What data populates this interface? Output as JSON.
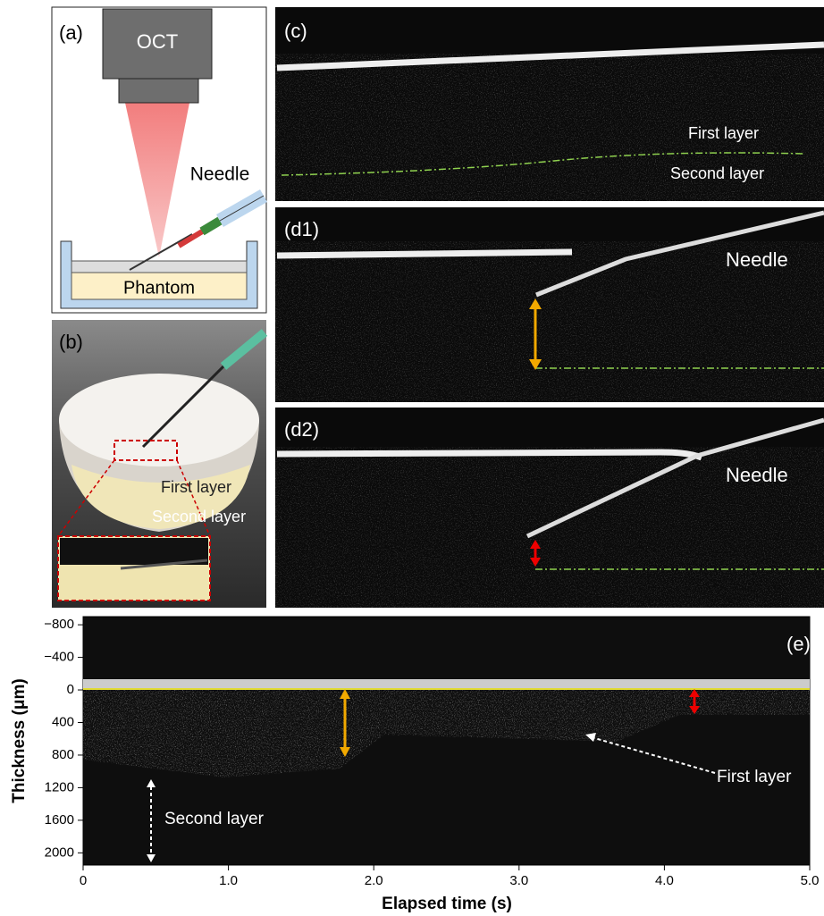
{
  "panels": {
    "a": {
      "label": "(a)",
      "device": "OCT",
      "needle": "Needle",
      "sample": "Phantom"
    },
    "b": {
      "label": "(b)",
      "first_layer": "First layer",
      "second_layer": "Second layer"
    },
    "c": {
      "label": "(c)",
      "first_layer": "First layer",
      "second_layer": "Second layer"
    },
    "d1": {
      "label": "(d1)",
      "needle": "Needle"
    },
    "d2": {
      "label": "(d2)",
      "needle": "Needle"
    }
  },
  "chart_data": {
    "type": "image",
    "label": "(e)",
    "xlabel": "Elapsed time (s)",
    "ylabel": "Thickness (μm)",
    "xlim": [
      0,
      5
    ],
    "ylim": [
      -900,
      2150
    ],
    "y_inverted": true,
    "xticks": [
      0,
      {
        "value": 1,
        "label": "1.0"
      },
      {
        "value": 2,
        "label": "2.0"
      },
      {
        "value": 3,
        "label": "3.0"
      },
      {
        "value": 4,
        "label": "4.0"
      },
      {
        "value": 5,
        "label": "5.0"
      }
    ],
    "yticks": [
      {
        "value": -800,
        "label": "−800"
      },
      {
        "value": -400,
        "label": "−400"
      },
      0,
      400,
      800,
      1200,
      1600,
      2000
    ],
    "annotations": [
      "First layer",
      "Second layer"
    ]
  }
}
